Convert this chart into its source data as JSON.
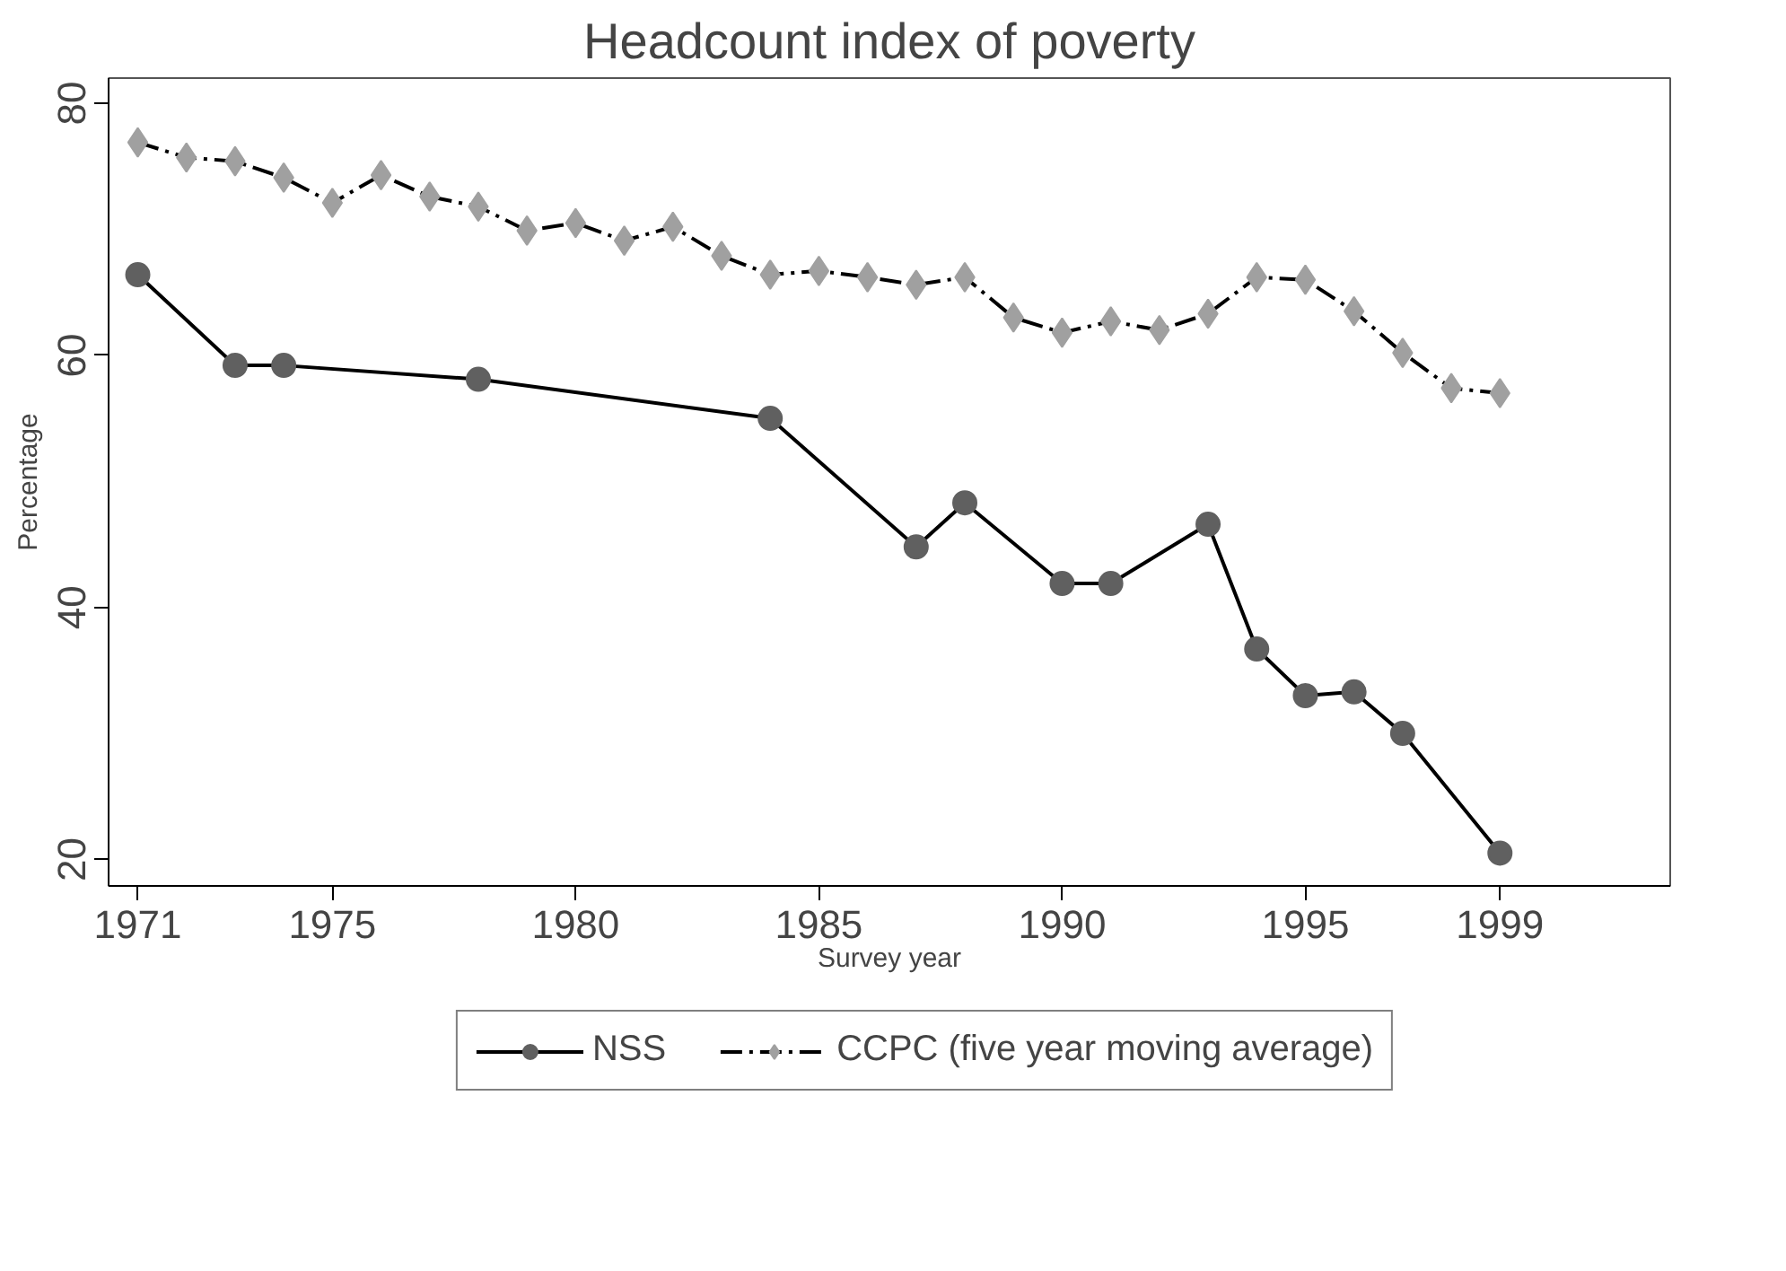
{
  "chart_data": {
    "type": "line",
    "title": "Headcount index of poverty",
    "xlabel": "Survey year",
    "ylabel": "Percentage",
    "xlim": [
      1970.4,
      2002.5
    ],
    "xticks": [
      1971,
      1975,
      1980,
      1985,
      1990,
      1995,
      1999
    ],
    "ylim": [
      17.9,
      82
    ],
    "yticks": [
      20,
      40,
      60,
      80
    ],
    "grid": false,
    "legend": "bottom",
    "series": [
      {
        "name": "NSS",
        "color": "#606060",
        "marker": "circle",
        "line_style": "solid",
        "x": [
          1971,
          1973,
          1974,
          1978,
          1984,
          1987,
          1988,
          1990,
          1991,
          1993,
          1994,
          1995,
          1996,
          1997,
          1999
        ],
        "values": [
          66.4,
          59.2,
          59.2,
          58.1,
          55.0,
          44.8,
          48.3,
          41.9,
          41.9,
          46.6,
          36.7,
          33.0,
          33.3,
          30.0,
          20.5
        ]
      },
      {
        "name": "CCPC (five year moving average)",
        "color": "#a0a0a0",
        "marker": "diamond",
        "line_style": "dashed",
        "x": [
          1971,
          1972,
          1973,
          1974,
          1975,
          1976,
          1977,
          1978,
          1979,
          1980,
          1981,
          1982,
          1983,
          1984,
          1985,
          1986,
          1987,
          1988,
          1989,
          1990,
          1991,
          1992,
          1993,
          1994,
          1995,
          1996,
          1997,
          1998,
          1999
        ],
        "values": [
          76.9,
          75.7,
          75.4,
          74.1,
          72.1,
          74.3,
          72.6,
          71.8,
          69.9,
          70.5,
          69.1,
          70.2,
          67.9,
          66.4,
          66.7,
          66.2,
          65.6,
          66.2,
          63.0,
          61.8,
          62.7,
          62.0,
          63.3,
          66.2,
          66.0,
          63.5,
          60.2,
          57.4,
          57.0
        ]
      }
    ]
  }
}
